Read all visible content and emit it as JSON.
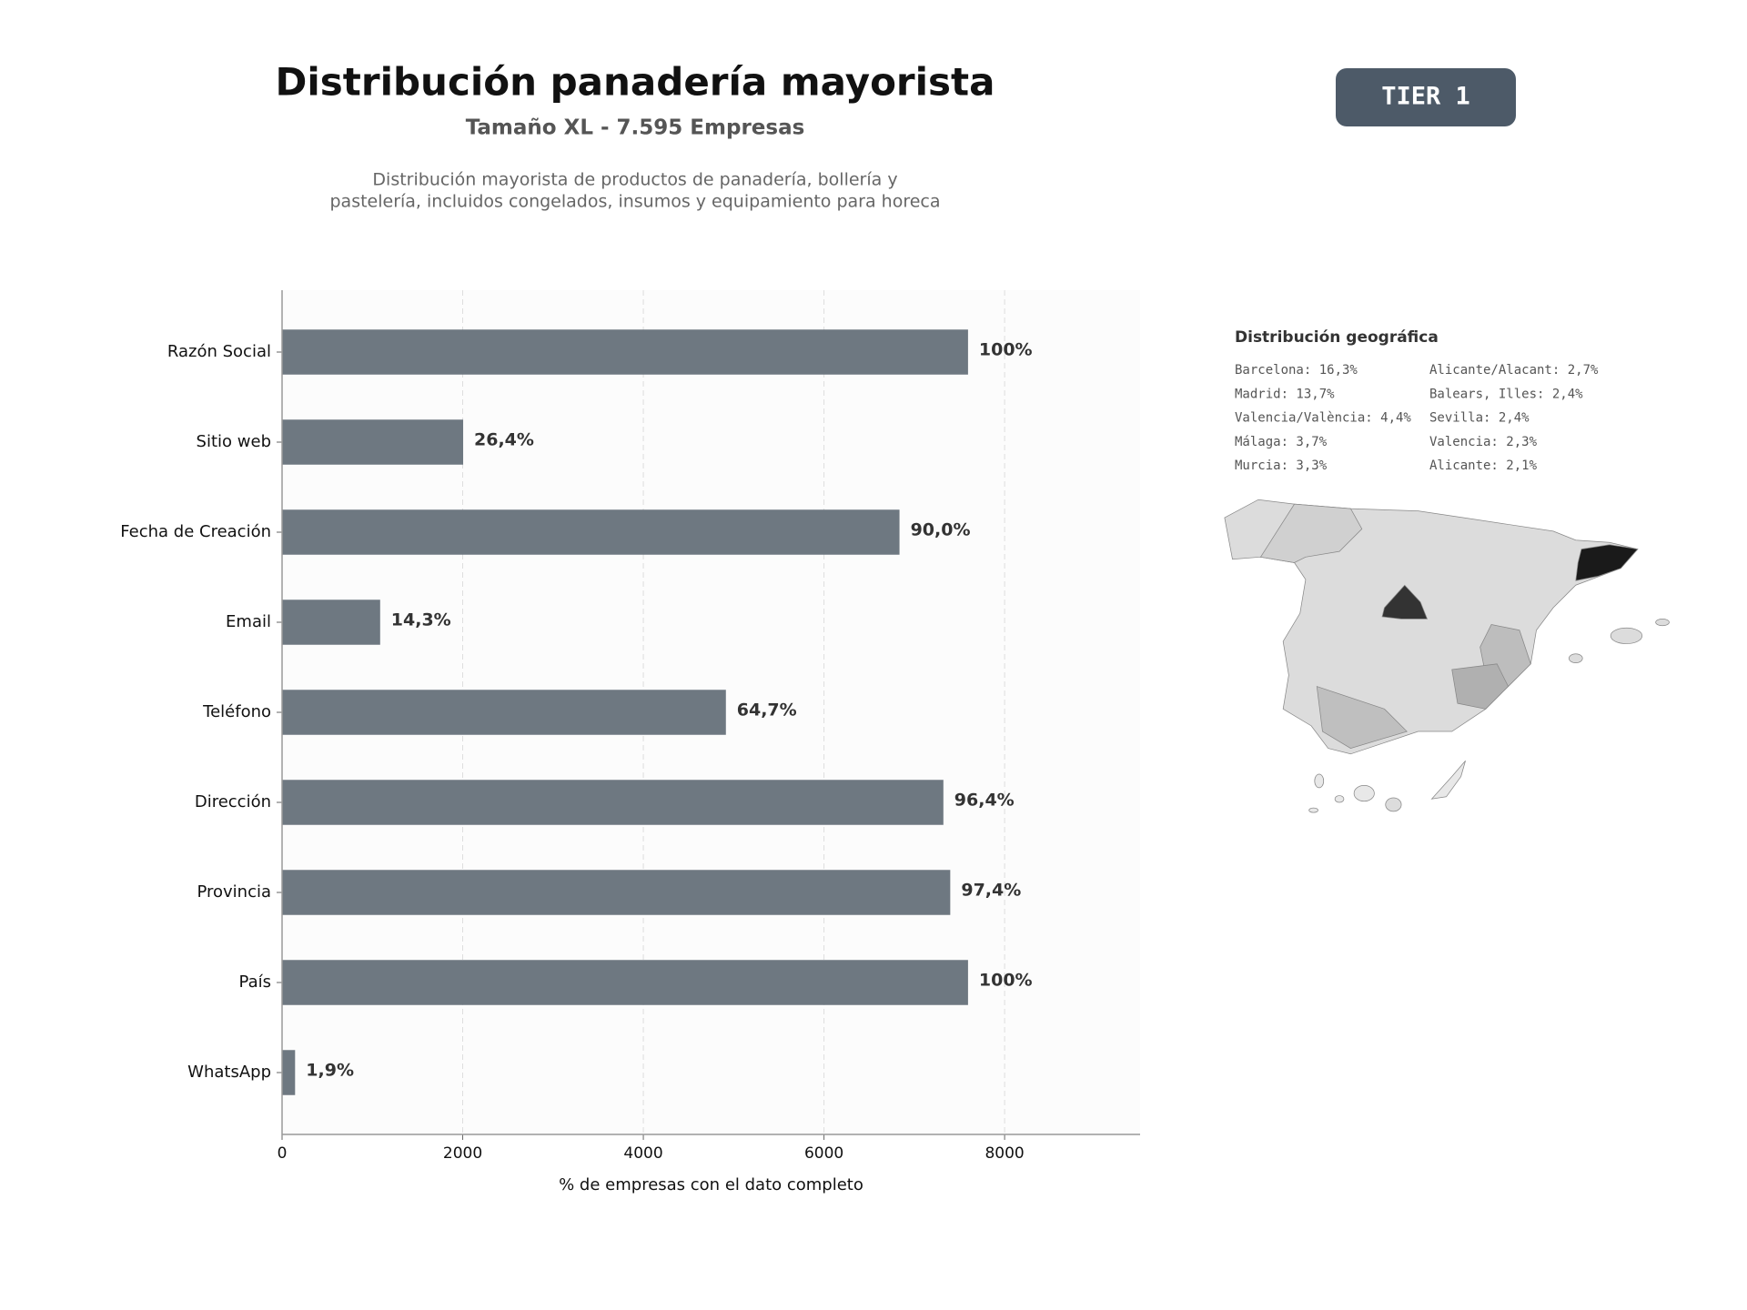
{
  "chart_data": {
    "type": "hbar",
    "title": "Distribución panadería mayorista",
    "subtitle": "Tamaño XL - 7.595 Empresas",
    "description": [
      "Distribución mayorista de productos de panadería, bollería y",
      "pastelería, incluidos congelados, insumos y equipamiento para horeca"
    ],
    "x_label": "% de empresas con el dato completo",
    "categories": [
      "Razón Social",
      "Sitio web",
      "Fecha de Creación",
      "Email",
      "Teléfono",
      "Dirección",
      "Provincia",
      "País",
      "WhatsApp"
    ],
    "values": [
      7595,
      2005,
      6836,
      1086,
      4914,
      7322,
      7398,
      7595,
      144
    ],
    "value_labels": [
      "100%",
      "26,4%",
      "90,0%",
      "14,3%",
      "64,7%",
      "96,4%",
      "97,4%",
      "100%",
      "1,9%"
    ],
    "color": "#6e7881",
    "xlim": [
      0,
      9500
    ],
    "xticks": [
      0,
      2000,
      4000,
      6000,
      8000
    ],
    "grid": true
  },
  "badge": "TIER 1",
  "geo": {
    "title": "Distribución geográfica",
    "items": [
      "Barcelona: 16,3%",
      "Madrid: 13,7%",
      "Valencia/València: 4,4%",
      "Málaga: 3,7%",
      "Murcia: 3,3%",
      "Alicante/Alacant: 2,7%",
      "Balears, Illes: 2,4%",
      "Sevilla: 2,4%",
      "Valencia: 2,3%",
      "Alicante: 2,1%"
    ]
  }
}
